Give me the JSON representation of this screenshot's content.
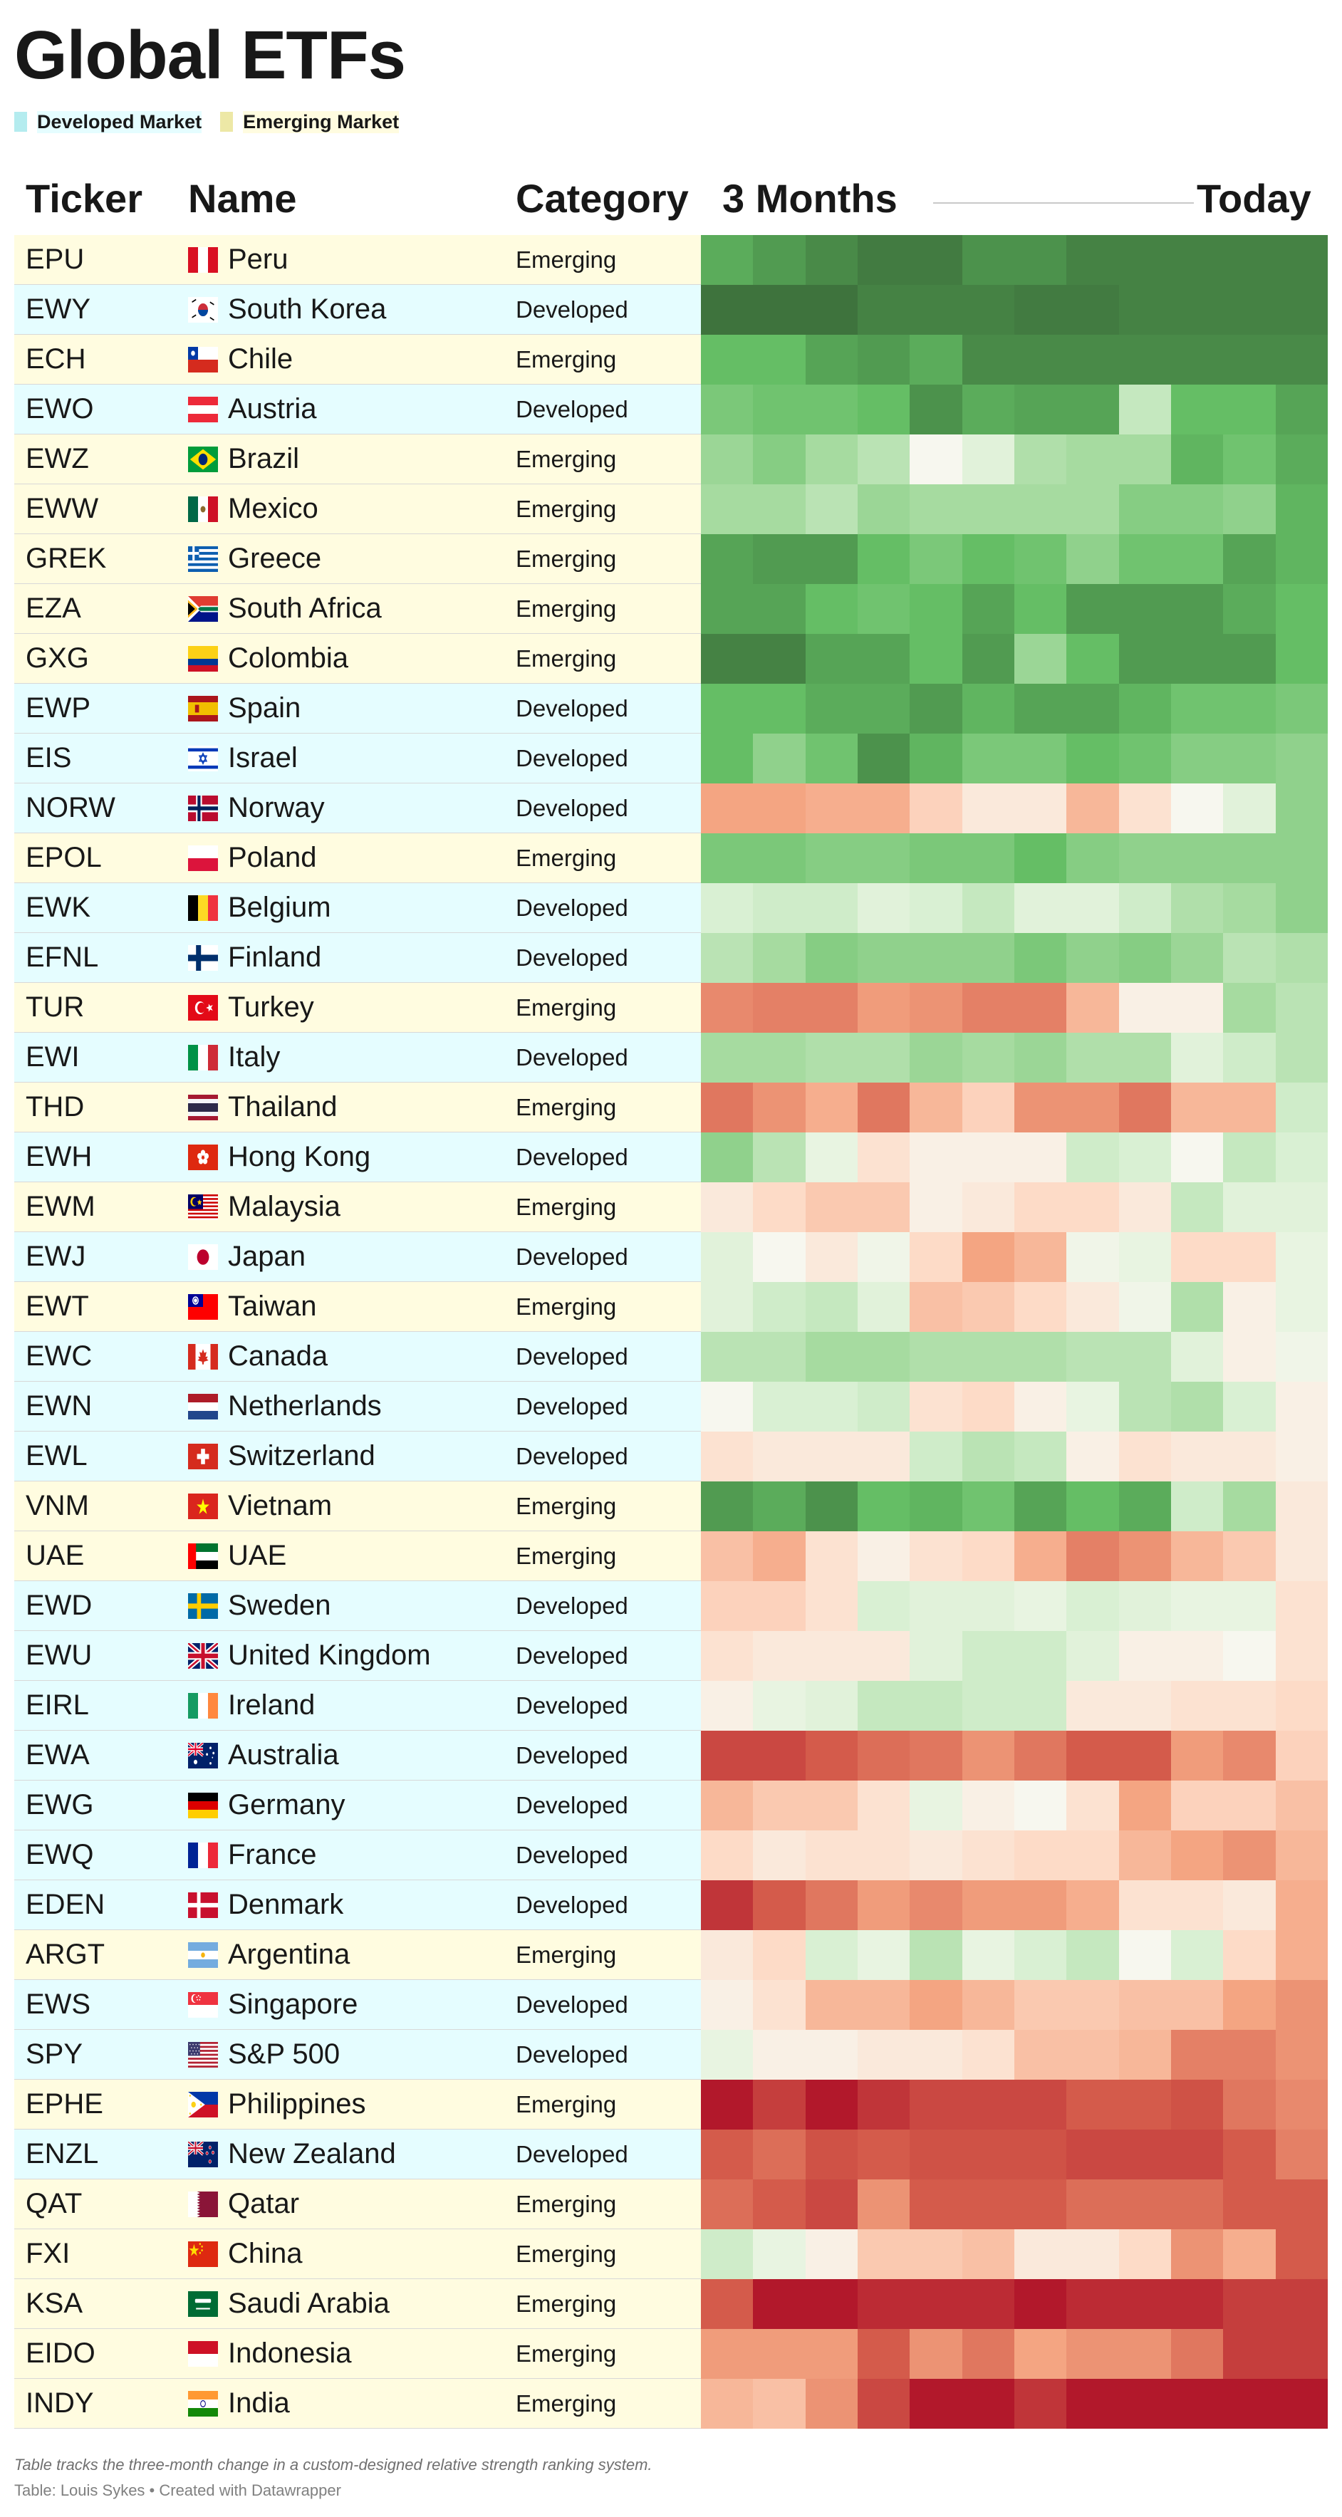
{
  "page": {
    "title": "Global ETFs",
    "legend": [
      {
        "label": "Developed Market",
        "swatch": "#b4ecef",
        "bg": "#e5fdff"
      },
      {
        "label": "Emerging Market",
        "swatch": "#ede8a6",
        "bg": "#fffce0"
      }
    ],
    "footer_note": "Table tracks the three-month change in a custom-designed relative strength ranking system.",
    "footer_credit": "Table: Louis Sykes • Created with Datawrapper"
  },
  "colors": {
    "developed_bg": "#e5fdff",
    "emerging_bg": "#fffce0",
    "scale_min": "#b2182b",
    "scale_mid": "#f7f7f2",
    "scale_max": "#3b6b39"
  },
  "chart_data": {
    "type": "heatmap",
    "columns": [
      "Ticker",
      "Name",
      "Category",
      "3 Months",
      "Today"
    ],
    "scale": {
      "min": -5,
      "max": 5,
      "description": "relative strength change, red = weak, green = strong (estimated)"
    },
    "rows": [
      {
        "ticker": "EPU",
        "name": "Peru",
        "category": "Emerging",
        "flag": "peru",
        "values": [
          3.4,
          3.8,
          4.2,
          4.6,
          4.6,
          4.0,
          4.0,
          4.4,
          4.4,
          4.4,
          4.4,
          4.4
        ]
      },
      {
        "ticker": "EWY",
        "name": "South Korea",
        "category": "Developed",
        "flag": "south-korea",
        "values": [
          4.8,
          4.8,
          4.8,
          4.4,
          4.4,
          4.4,
          4.6,
          4.6,
          4.4,
          4.4,
          4.4,
          4.4
        ]
      },
      {
        "ticker": "ECH",
        "name": "Chile",
        "category": "Emerging",
        "flag": "chile",
        "values": [
          3.0,
          3.0,
          3.6,
          3.8,
          3.4,
          4.2,
          4.2,
          4.2,
          4.2,
          4.2,
          4.2,
          4.2
        ]
      },
      {
        "ticker": "EWO",
        "name": "Austria",
        "category": "Developed",
        "flag": "austria",
        "values": [
          2.6,
          2.8,
          2.8,
          3.0,
          4.0,
          3.4,
          3.6,
          3.6,
          1.2,
          3.0,
          3.0,
          3.6
        ]
      },
      {
        "ticker": "EWZ",
        "name": "Brazil",
        "category": "Emerging",
        "flag": "brazil",
        "values": [
          2.0,
          2.4,
          1.8,
          1.4,
          0.0,
          0.6,
          1.6,
          1.8,
          1.8,
          3.2,
          2.8,
          3.4
        ]
      },
      {
        "ticker": "EWW",
        "name": "Mexico",
        "category": "Emerging",
        "flag": "mexico",
        "values": [
          1.8,
          1.8,
          1.4,
          2.0,
          1.8,
          1.8,
          1.8,
          1.8,
          2.4,
          2.4,
          2.2,
          3.2
        ]
      },
      {
        "ticker": "GREK",
        "name": "Greece",
        "category": "Emerging",
        "flag": "greece",
        "values": [
          3.6,
          3.8,
          3.8,
          3.0,
          2.6,
          3.0,
          2.8,
          2.2,
          2.8,
          2.8,
          3.6,
          3.2
        ]
      },
      {
        "ticker": "EZA",
        "name": "South Africa",
        "category": "Emerging",
        "flag": "south-africa",
        "values": [
          3.6,
          3.6,
          3.0,
          2.8,
          3.0,
          3.6,
          3.0,
          3.8,
          3.8,
          3.8,
          3.4,
          3.0
        ]
      },
      {
        "ticker": "GXG",
        "name": "Colombia",
        "category": "Emerging",
        "flag": "colombia",
        "values": [
          4.4,
          4.4,
          3.6,
          3.6,
          3.0,
          3.8,
          2.0,
          3.0,
          3.8,
          3.8,
          3.8,
          3.0
        ]
      },
      {
        "ticker": "EWP",
        "name": "Spain",
        "category": "Developed",
        "flag": "spain",
        "values": [
          3.0,
          3.0,
          3.4,
          3.4,
          3.8,
          3.2,
          3.6,
          3.6,
          3.2,
          2.8,
          2.8,
          2.6
        ]
      },
      {
        "ticker": "EIS",
        "name": "Israel",
        "category": "Developed",
        "flag": "israel",
        "values": [
          3.0,
          2.2,
          2.8,
          4.0,
          3.2,
          2.6,
          2.6,
          3.0,
          2.8,
          2.4,
          2.4,
          2.2
        ]
      },
      {
        "ticker": "NORW",
        "name": "Norway",
        "category": "Developed",
        "flag": "norway",
        "values": [
          -2.0,
          -2.0,
          -1.8,
          -1.8,
          -1.0,
          -0.4,
          -0.4,
          -1.6,
          -0.6,
          0.0,
          0.6,
          2.2
        ]
      },
      {
        "ticker": "EPOL",
        "name": "Poland",
        "category": "Emerging",
        "flag": "poland",
        "values": [
          2.6,
          2.6,
          2.4,
          2.4,
          2.6,
          2.6,
          3.0,
          2.4,
          2.2,
          2.2,
          2.2,
          2.2
        ]
      },
      {
        "ticker": "EWK",
        "name": "Belgium",
        "category": "Developed",
        "flag": "belgium",
        "values": [
          0.8,
          1.0,
          1.0,
          0.6,
          0.8,
          1.2,
          0.6,
          0.6,
          1.0,
          1.6,
          1.8,
          2.2
        ]
      },
      {
        "ticker": "EFNL",
        "name": "Finland",
        "category": "Developed",
        "flag": "finland",
        "values": [
          1.4,
          1.8,
          2.4,
          2.2,
          2.2,
          2.2,
          2.6,
          2.2,
          2.4,
          2.0,
          1.4,
          1.6
        ]
      },
      {
        "ticker": "TUR",
        "name": "Turkey",
        "category": "Emerging",
        "flag": "turkey",
        "values": [
          -2.6,
          -2.8,
          -2.8,
          -2.2,
          -2.4,
          -2.8,
          -2.8,
          -1.6,
          -0.2,
          -0.2,
          1.8,
          1.4
        ]
      },
      {
        "ticker": "EWI",
        "name": "Italy",
        "category": "Developed",
        "flag": "italy",
        "values": [
          1.8,
          1.8,
          1.6,
          1.6,
          2.0,
          1.8,
          2.0,
          1.6,
          1.6,
          0.6,
          1.0,
          1.4
        ]
      },
      {
        "ticker": "THD",
        "name": "Thailand",
        "category": "Emerging",
        "flag": "thailand",
        "values": [
          -3.0,
          -2.4,
          -1.8,
          -3.0,
          -1.6,
          -1.0,
          -2.4,
          -2.4,
          -3.0,
          -1.6,
          -1.6,
          1.0
        ]
      },
      {
        "ticker": "EWH",
        "name": "Hong Kong",
        "category": "Developed",
        "flag": "hong-kong",
        "values": [
          2.2,
          1.4,
          0.4,
          -0.6,
          -0.2,
          -0.2,
          -0.2,
          1.0,
          0.8,
          0.0,
          1.2,
          0.8
        ]
      },
      {
        "ticker": "EWM",
        "name": "Malaysia",
        "category": "Emerging",
        "flag": "malaysia",
        "values": [
          -0.4,
          -0.8,
          -1.2,
          -1.2,
          -0.2,
          -0.4,
          -0.8,
          -0.8,
          -0.4,
          1.2,
          0.6,
          0.6
        ]
      },
      {
        "ticker": "EWJ",
        "name": "Japan",
        "category": "Developed",
        "flag": "japan",
        "values": [
          0.6,
          0.0,
          -0.4,
          0.2,
          -0.8,
          -2.0,
          -1.6,
          0.2,
          0.4,
          -0.8,
          -0.8,
          0.4
        ]
      },
      {
        "ticker": "EWT",
        "name": "Taiwan",
        "category": "Emerging",
        "flag": "taiwan",
        "values": [
          0.6,
          1.0,
          1.2,
          0.6,
          -1.4,
          -1.2,
          -0.8,
          -0.4,
          0.2,
          1.6,
          -0.2,
          0.4
        ]
      },
      {
        "ticker": "EWC",
        "name": "Canada",
        "category": "Developed",
        "flag": "canada",
        "values": [
          1.4,
          1.4,
          1.8,
          1.8,
          1.6,
          1.6,
          1.6,
          1.4,
          1.4,
          0.6,
          -0.2,
          0.2
        ]
      },
      {
        "ticker": "EWN",
        "name": "Netherlands",
        "category": "Developed",
        "flag": "netherlands",
        "values": [
          0.0,
          0.8,
          0.8,
          1.0,
          -0.6,
          -0.8,
          -0.2,
          0.4,
          1.4,
          1.6,
          0.8,
          -0.2
        ]
      },
      {
        "ticker": "EWL",
        "name": "Switzerland",
        "category": "Developed",
        "flag": "switzerland",
        "values": [
          -0.6,
          -0.4,
          -0.4,
          -0.4,
          1.0,
          1.4,
          1.2,
          -0.2,
          -0.6,
          -0.4,
          -0.4,
          -0.2
        ]
      },
      {
        "ticker": "VNM",
        "name": "Vietnam",
        "category": "Emerging",
        "flag": "vietnam",
        "values": [
          3.8,
          3.4,
          4.0,
          3.0,
          3.2,
          2.8,
          3.6,
          3.0,
          3.4,
          1.0,
          1.8,
          -0.4
        ]
      },
      {
        "ticker": "UAE",
        "name": "UAE",
        "category": "Emerging",
        "flag": "uae",
        "values": [
          -1.4,
          -1.8,
          -0.6,
          -0.2,
          -0.6,
          -0.8,
          -1.8,
          -2.8,
          -2.4,
          -1.6,
          -1.2,
          -0.4
        ]
      },
      {
        "ticker": "EWD",
        "name": "Sweden",
        "category": "Developed",
        "flag": "sweden",
        "values": [
          -1.0,
          -1.0,
          -0.6,
          0.8,
          0.6,
          0.6,
          0.4,
          0.8,
          0.6,
          0.4,
          0.4,
          -0.6
        ]
      },
      {
        "ticker": "EWU",
        "name": "United Kingdom",
        "category": "Developed",
        "flag": "united-kingdom",
        "values": [
          -0.6,
          -0.4,
          -0.4,
          -0.4,
          0.6,
          1.0,
          1.0,
          0.6,
          -0.2,
          -0.2,
          0.0,
          -0.6
        ]
      },
      {
        "ticker": "EIRL",
        "name": "Ireland",
        "category": "Developed",
        "flag": "ireland",
        "values": [
          -0.2,
          0.4,
          0.6,
          1.2,
          1.2,
          1.0,
          1.0,
          -0.4,
          -0.4,
          -0.6,
          -0.6,
          -0.8
        ]
      },
      {
        "ticker": "EWA",
        "name": "Australia",
        "category": "Developed",
        "flag": "australia",
        "values": [
          -4.0,
          -4.0,
          -3.6,
          -3.2,
          -3.0,
          -2.4,
          -3.0,
          -3.6,
          -3.6,
          -2.2,
          -2.6,
          -1.0
        ]
      },
      {
        "ticker": "EWG",
        "name": "Germany",
        "category": "Developed",
        "flag": "germany",
        "values": [
          -1.6,
          -1.2,
          -1.2,
          -0.6,
          0.4,
          -0.2,
          0.0,
          -0.6,
          -2.0,
          -1.0,
          -1.0,
          -1.4
        ]
      },
      {
        "ticker": "EWQ",
        "name": "France",
        "category": "Developed",
        "flag": "france",
        "values": [
          -0.8,
          -0.4,
          -0.6,
          -0.6,
          -0.4,
          -0.6,
          -0.8,
          -0.8,
          -1.6,
          -2.0,
          -2.4,
          -1.6
        ]
      },
      {
        "ticker": "EDEN",
        "name": "Denmark",
        "category": "Developed",
        "flag": "denmark",
        "values": [
          -4.4,
          -3.6,
          -3.0,
          -2.2,
          -2.6,
          -2.2,
          -2.2,
          -1.8,
          -0.6,
          -0.6,
          -0.4,
          -1.8
        ]
      },
      {
        "ticker": "ARGT",
        "name": "Argentina",
        "category": "Emerging",
        "flag": "argentina",
        "values": [
          -0.4,
          -0.8,
          0.8,
          0.4,
          1.4,
          0.4,
          0.8,
          1.2,
          0.0,
          0.8,
          -0.8,
          -1.8
        ]
      },
      {
        "ticker": "EWS",
        "name": "Singapore",
        "category": "Developed",
        "flag": "singapore",
        "values": [
          -0.2,
          -0.6,
          -1.6,
          -1.6,
          -2.0,
          -1.6,
          -1.2,
          -1.2,
          -1.4,
          -1.4,
          -2.0,
          -2.4
        ]
      },
      {
        "ticker": "SPY",
        "name": "S&P 500",
        "category": "Developed",
        "flag": "usa",
        "values": [
          0.4,
          -0.2,
          -0.2,
          -0.4,
          -0.4,
          -0.6,
          -1.4,
          -1.4,
          -1.6,
          -2.8,
          -2.8,
          -2.4
        ]
      },
      {
        "ticker": "EPHE",
        "name": "Philippines",
        "category": "Emerging",
        "flag": "philippines",
        "values": [
          -5.0,
          -4.2,
          -5.0,
          -4.4,
          -4.0,
          -4.0,
          -4.0,
          -3.6,
          -3.6,
          -3.8,
          -3.0,
          -2.6
        ]
      },
      {
        "ticker": "ENZL",
        "name": "New Zealand",
        "category": "Developed",
        "flag": "new-zealand",
        "values": [
          -3.6,
          -3.2,
          -3.8,
          -3.6,
          -3.8,
          -3.8,
          -3.8,
          -4.0,
          -4.0,
          -4.0,
          -3.6,
          -2.8
        ]
      },
      {
        "ticker": "QAT",
        "name": "Qatar",
        "category": "Emerging",
        "flag": "qatar",
        "values": [
          -3.2,
          -3.6,
          -4.0,
          -2.4,
          -3.6,
          -3.6,
          -3.6,
          -3.2,
          -3.2,
          -3.2,
          -3.6,
          -3.6
        ]
      },
      {
        "ticker": "FXI",
        "name": "China",
        "category": "Emerging",
        "flag": "china",
        "values": [
          1.0,
          0.4,
          -0.2,
          -1.2,
          -1.2,
          -1.4,
          -0.4,
          -0.4,
          -0.8,
          -2.4,
          -1.8,
          -3.6
        ]
      },
      {
        "ticker": "KSA",
        "name": "Saudi Arabia",
        "category": "Emerging",
        "flag": "saudi-arabia",
        "values": [
          -3.6,
          -5.0,
          -5.0,
          -4.6,
          -4.6,
          -4.6,
          -5.0,
          -4.6,
          -4.6,
          -4.6,
          -4.2,
          -4.2
        ]
      },
      {
        "ticker": "EIDO",
        "name": "Indonesia",
        "category": "Emerging",
        "flag": "indonesia",
        "values": [
          -2.2,
          -2.2,
          -2.2,
          -3.6,
          -2.4,
          -3.0,
          -2.0,
          -2.4,
          -2.4,
          -3.0,
          -4.2,
          -4.2
        ]
      },
      {
        "ticker": "INDY",
        "name": "India",
        "category": "Emerging",
        "flag": "india",
        "values": [
          -1.6,
          -1.4,
          -2.4,
          -4.0,
          -5.0,
          -5.0,
          -4.4,
          -5.0,
          -5.0,
          -5.0,
          -5.0,
          -5.0
        ]
      }
    ]
  }
}
